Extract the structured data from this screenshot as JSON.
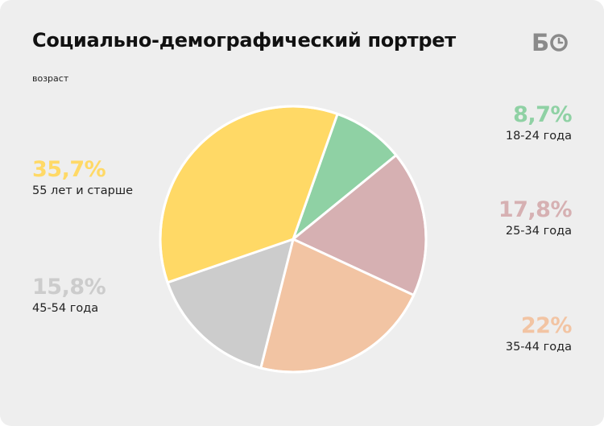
{
  "header": {
    "title": "Социально-демографический портрет",
    "subtitle": "возраст",
    "logo_text": "БО",
    "logo_icon": "clock-icon"
  },
  "chart_data": {
    "type": "pie",
    "title": "Социально-демографический портрет",
    "subtitle": "возраст",
    "slices": [
      {
        "label": "18-24 года",
        "value": 8.7,
        "display": "8,7%",
        "color": "#8fd1a4"
      },
      {
        "label": "25-34 года",
        "value": 17.8,
        "display": "17,8%",
        "color": "#d6b0b2"
      },
      {
        "label": "35-44 года",
        "value": 22,
        "display": "22%",
        "color": "#f2c4a3"
      },
      {
        "label": "45-54 года",
        "value": 15.8,
        "display": "15,8%",
        "color": "#cccccc"
      },
      {
        "label": "55 лет и старше",
        "value": 35.7,
        "display": "35,7%",
        "color": "#ffd966"
      }
    ]
  }
}
